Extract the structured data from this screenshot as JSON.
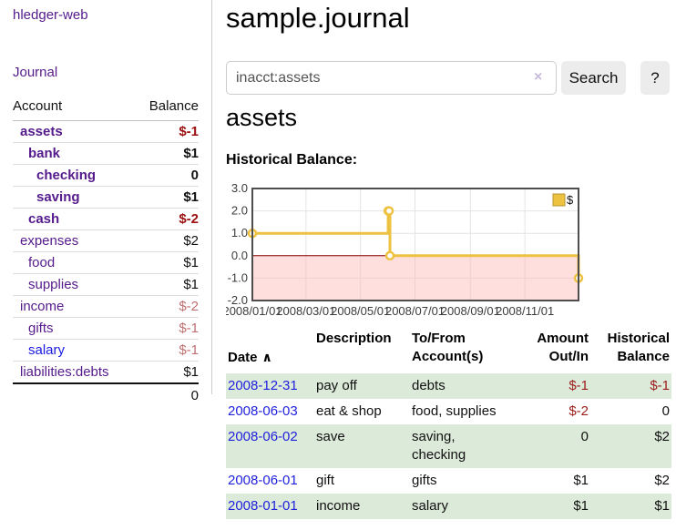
{
  "brand": "hledger-web",
  "nav": {
    "journal": "Journal"
  },
  "sidebar": {
    "account_col": "Account",
    "balance_col": "Balance",
    "accounts": [
      {
        "name": "assets",
        "depth": 1,
        "bold": true,
        "color": "purple",
        "balance": "$-1",
        "bal_style": "strong-neg"
      },
      {
        "name": "bank",
        "depth": 2,
        "bold": true,
        "color": "purple",
        "balance": "$1",
        "bal_style": "strong"
      },
      {
        "name": "checking",
        "depth": 3,
        "bold": true,
        "color": "purple",
        "balance": "0",
        "bal_style": "strong"
      },
      {
        "name": "saving",
        "depth": 3,
        "bold": true,
        "color": "purple",
        "balance": "$1",
        "bal_style": "strong"
      },
      {
        "name": "cash",
        "depth": 2,
        "bold": true,
        "color": "purple",
        "balance": "$-2",
        "bal_style": "strong-neg"
      },
      {
        "name": "expenses",
        "depth": 1,
        "bold": false,
        "color": "purple",
        "balance": "$2",
        "bal_style": "plain"
      },
      {
        "name": "food",
        "depth": 2,
        "bold": false,
        "color": "purple",
        "balance": "$1",
        "bal_style": "plain"
      },
      {
        "name": "supplies",
        "depth": 2,
        "bold": false,
        "color": "purple",
        "balance": "$1",
        "bal_style": "plain"
      },
      {
        "name": "income",
        "depth": 1,
        "bold": false,
        "color": "purple",
        "balance": "$-2",
        "bal_style": "light-neg"
      },
      {
        "name": "gifts",
        "depth": 2,
        "bold": false,
        "color": "purple",
        "balance": "$-1",
        "bal_style": "light-neg"
      },
      {
        "name": "salary",
        "depth": 2,
        "bold": false,
        "color": "blue",
        "balance": "$-1",
        "bal_style": "light-neg"
      },
      {
        "name": "liabilities:debts",
        "depth": 1,
        "bold": false,
        "color": "purple",
        "balance": "$1",
        "bal_style": "plain"
      }
    ],
    "total": "0"
  },
  "header": {
    "title": "sample.journal"
  },
  "search": {
    "value": "inacct:assets",
    "clear_icon": "×",
    "button_label": "Search",
    "help_label": "?"
  },
  "account_page": {
    "heading": "assets",
    "chart_title": "Historical Balance:"
  },
  "chart_data": {
    "type": "line",
    "step": true,
    "title": "Historical Balance:",
    "series": [
      {
        "name": "$",
        "color": "#edc240",
        "points": [
          {
            "x": "2008-01-01",
            "y": 1
          },
          {
            "x": "2008-06-01",
            "y": 2
          },
          {
            "x": "2008-06-02",
            "y": 2
          },
          {
            "x": "2008-06-03",
            "y": 0
          },
          {
            "x": "2008-12-31",
            "y": -1
          }
        ]
      }
    ],
    "x_ticks": [
      "2008/01/01",
      "2008/03/01",
      "2008/05/01",
      "2008/07/01",
      "2008/09/01",
      "2008/11/01"
    ],
    "x_range": [
      "2008-01-01",
      "2008-12-31"
    ],
    "y_ticks": [
      3.0,
      2.0,
      1.0,
      0.0,
      -1.0,
      -2.0
    ],
    "y_range": [
      -2,
      3
    ],
    "grid": true,
    "legend_position": "top-right",
    "legend_label": "$",
    "negative_region": true,
    "negative_region_color": "rgba(255,182,182,0.45)",
    "zero_line_color": "#8b0000",
    "gridline_color": "#e4e4e4",
    "border_color": "#4d4d4d"
  },
  "register": {
    "columns": {
      "date": "Date",
      "description": "Description",
      "account": "To/From\nAccount(s)",
      "amount": "Amount\nOut/In",
      "balance": "Historical\nBalance"
    },
    "sort_icon": "∧",
    "rows": [
      {
        "date": "2008-12-31",
        "description": "pay off",
        "accounts": "debts",
        "amount": "$-1",
        "amount_neg": true,
        "balance": "$-1",
        "balance_neg": true,
        "shaded": true
      },
      {
        "date": "2008-06-03",
        "description": "eat & shop",
        "accounts": "food, supplies",
        "amount": "$-2",
        "amount_neg": true,
        "balance": "0",
        "balance_neg": false,
        "shaded": false
      },
      {
        "date": "2008-06-02",
        "description": "save",
        "accounts": "saving,\nchecking",
        "amount": "0",
        "amount_neg": false,
        "balance": "$2",
        "balance_neg": false,
        "shaded": true
      },
      {
        "date": "2008-06-01",
        "description": "gift",
        "accounts": "gifts",
        "amount": "$1",
        "amount_neg": false,
        "balance": "$2",
        "balance_neg": false,
        "shaded": false
      },
      {
        "date": "2008-01-01",
        "description": "income",
        "accounts": "salary",
        "amount": "$1",
        "amount_neg": false,
        "balance": "$1",
        "balance_neg": false,
        "shaded": true
      }
    ]
  },
  "colors": {
    "link_purple": "#551a8b",
    "link_blue": "#1a1ae0",
    "date_link_blue": "#2222dd",
    "negative_strong": "#9b0f0f",
    "negative_light": "#bf6f6f",
    "row_shade_green": "#dcead9",
    "chart_gold": "#edc240",
    "button_gray": "#ececec"
  }
}
